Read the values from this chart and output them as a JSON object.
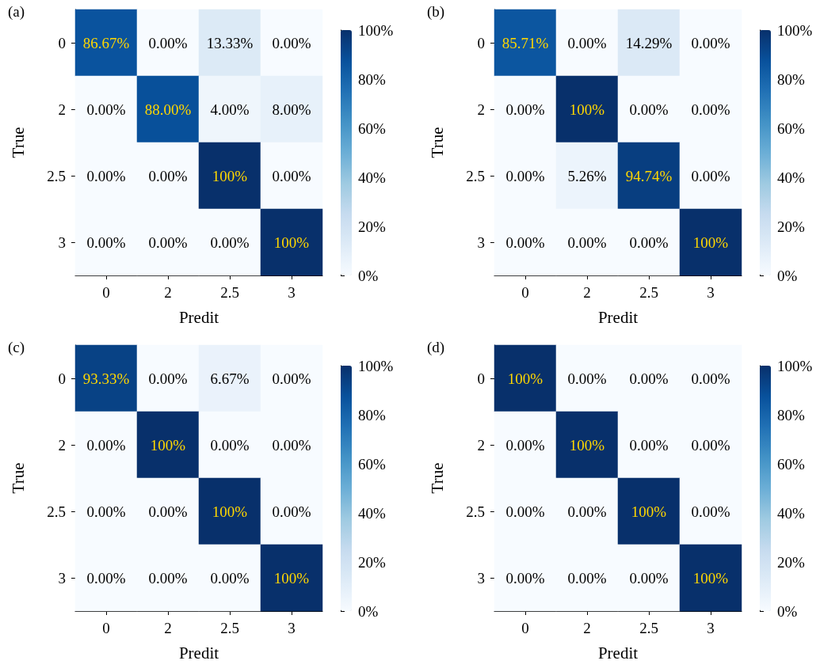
{
  "chart_data": [
    {
      "type": "heatmap",
      "title": "(a)",
      "xlabel": "Predit",
      "ylabel": "True",
      "categories": [
        "0",
        "2",
        "2.5",
        "3"
      ],
      "y_categories": [
        "0",
        "2",
        "2.5",
        "3"
      ],
      "cells": [
        [
          86.67,
          0,
          13.33,
          0
        ],
        [
          0,
          88,
          4,
          8
        ],
        [
          0,
          0,
          100,
          0
        ],
        [
          0,
          0,
          0,
          100
        ]
      ],
      "cell_labels": [
        [
          "86.67%",
          "0.00%",
          "13.33%",
          "0.00%"
        ],
        [
          "0.00%",
          "88.00%",
          "4.00%",
          "8.00%"
        ],
        [
          "0.00%",
          "0.00%",
          "100%",
          "0.00%"
        ],
        [
          "0.00%",
          "0.00%",
          "0.00%",
          "100%"
        ]
      ],
      "clim": [
        0,
        100
      ],
      "cticks": [
        {
          "value": 0,
          "label": "0%"
        },
        {
          "value": 20,
          "label": "20%"
        },
        {
          "value": 40,
          "label": "40%"
        },
        {
          "value": 60,
          "label": "60%"
        },
        {
          "value": 80,
          "label": "80%"
        },
        {
          "value": 100,
          "label": "100%"
        }
      ]
    },
    {
      "type": "heatmap",
      "title": "(b)",
      "xlabel": "Predit",
      "ylabel": "True",
      "categories": [
        "0",
        "2",
        "2.5",
        "3"
      ],
      "y_categories": [
        "0",
        "2",
        "2.5",
        "3"
      ],
      "cells": [
        [
          85.71,
          0,
          14.29,
          0
        ],
        [
          0,
          100,
          0,
          0
        ],
        [
          0,
          5.26,
          94.74,
          0
        ],
        [
          0,
          0,
          0,
          100
        ]
      ],
      "cell_labels": [
        [
          "85.71%",
          "0.00%",
          "14.29%",
          "0.00%"
        ],
        [
          "0.00%",
          "100%",
          "0.00%",
          "0.00%"
        ],
        [
          "0.00%",
          "5.26%",
          "94.74%",
          "0.00%"
        ],
        [
          "0.00%",
          "0.00%",
          "0.00%",
          "100%"
        ]
      ],
      "clim": [
        0,
        100
      ],
      "cticks": [
        {
          "value": 0,
          "label": "0%"
        },
        {
          "value": 20,
          "label": "20%"
        },
        {
          "value": 40,
          "label": "40%"
        },
        {
          "value": 60,
          "label": "60%"
        },
        {
          "value": 80,
          "label": "80%"
        },
        {
          "value": 100,
          "label": "100%"
        }
      ]
    },
    {
      "type": "heatmap",
      "title": "(c)",
      "xlabel": "Predit",
      "ylabel": "True",
      "categories": [
        "0",
        "2",
        "2.5",
        "3"
      ],
      "y_categories": [
        "0",
        "2",
        "2.5",
        "3"
      ],
      "cells": [
        [
          93.33,
          0,
          6.67,
          0
        ],
        [
          0,
          100,
          0,
          0
        ],
        [
          0,
          0,
          100,
          0
        ],
        [
          0,
          0,
          0,
          100
        ]
      ],
      "cell_labels": [
        [
          "93.33%",
          "0.00%",
          "6.67%",
          "0.00%"
        ],
        [
          "0.00%",
          "100%",
          "0.00%",
          "0.00%"
        ],
        [
          "0.00%",
          "0.00%",
          "100%",
          "0.00%"
        ],
        [
          "0.00%",
          "0.00%",
          "0.00%",
          "100%"
        ]
      ],
      "clim": [
        0,
        100
      ],
      "cticks": [
        {
          "value": 0,
          "label": "0%"
        },
        {
          "value": 20,
          "label": "20%"
        },
        {
          "value": 40,
          "label": "40%"
        },
        {
          "value": 60,
          "label": "60%"
        },
        {
          "value": 80,
          "label": "80%"
        },
        {
          "value": 100,
          "label": "100%"
        }
      ]
    },
    {
      "type": "heatmap",
      "title": "(d)",
      "xlabel": "Predit",
      "ylabel": "True",
      "categories": [
        "0",
        "2",
        "2.5",
        "3"
      ],
      "y_categories": [
        "0",
        "2",
        "2.5",
        "3"
      ],
      "cells": [
        [
          100,
          0,
          0,
          0
        ],
        [
          0,
          100,
          0,
          0
        ],
        [
          0,
          0,
          100,
          0
        ],
        [
          0,
          0,
          0,
          100
        ]
      ],
      "cell_labels": [
        [
          "100%",
          "0.00%",
          "0.00%",
          "0.00%"
        ],
        [
          "0.00%",
          "100%",
          "0.00%",
          "0.00%"
        ],
        [
          "0.00%",
          "0.00%",
          "100%",
          "0.00%"
        ],
        [
          "0.00%",
          "0.00%",
          "0.00%",
          "100%"
        ]
      ],
      "clim": [
        0,
        100
      ],
      "cticks": [
        {
          "value": 0,
          "label": "0%"
        },
        {
          "value": 20,
          "label": "20%"
        },
        {
          "value": 40,
          "label": "40%"
        },
        {
          "value": 60,
          "label": "60%"
        },
        {
          "value": 80,
          "label": "80%"
        },
        {
          "value": 100,
          "label": "100%"
        }
      ]
    }
  ]
}
